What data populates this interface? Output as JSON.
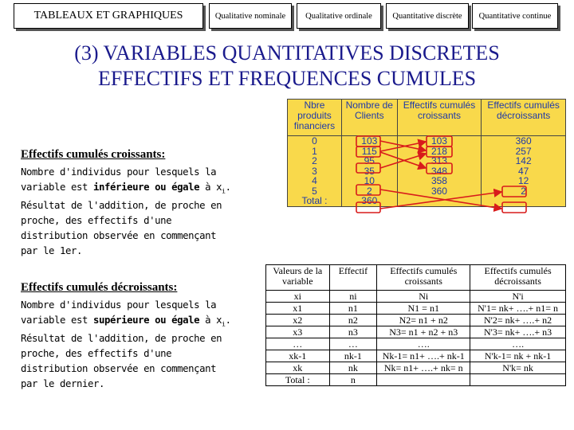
{
  "nav": {
    "tabs": [
      "TABLEAUX ET GRAPHIQUES",
      "Qualitative nominale",
      "Qualitative ordinale",
      "Quantitative discrète",
      "Quantitative continue"
    ]
  },
  "title": {
    "line1": "(3) VARIABLES QUANTITATIVES DISCRETES",
    "line2": "EFFECTIFS ET FREQUENCES CUMULES"
  },
  "section_croissants": {
    "heading": "Effectifs cumulés croissants:",
    "text_before": "Nombre d'individus pour lesquels la variable est ",
    "emphasis": "inférieure ou égale",
    "text_after": " à x",
    "subscript": "i",
    "text_end": ". Résultat de l'addition, de proche en proche, des effectifs d'une distribution observée en commençant par le 1er."
  },
  "section_decroissants": {
    "heading": "Effectifs cumulés décroissants:",
    "text_before": "Nombre d'individus pour lesquels la variable est ",
    "emphasis": "supérieure ou égale",
    "text_after": " à x",
    "subscript": "i",
    "text_end": ". Résultat de l'addition, de proche en proche, des effectifs d'une distribution observée en commençant par le dernier."
  },
  "table1": {
    "headers": [
      "Nbre produits financiers",
      "Nombre de Clients",
      "Effectifs cumulés croissants",
      "Effectifs cumulés décroissants"
    ],
    "rows": [
      [
        "0",
        "103",
        "103",
        "360"
      ],
      [
        "1",
        "115",
        "218",
        "257"
      ],
      [
        "2",
        "95",
        "313",
        "142"
      ],
      [
        "3",
        "35",
        "348",
        "47"
      ],
      [
        "4",
        "10",
        "358",
        "12"
      ],
      [
        "5",
        "2",
        "360",
        "2"
      ]
    ],
    "total_label": "Total :",
    "total_value": "360",
    "arrow_color": "#d81b1b"
  },
  "table2": {
    "headers": [
      "Valeurs de la variable",
      "Effectif",
      "Effectifs cumulés croissants",
      "Effectifs cumulés décroissants"
    ],
    "symbols": [
      "xi",
      "ni",
      "Ni",
      "N'i"
    ],
    "rows": [
      [
        "x1",
        "n1",
        "N1 = n1",
        "N'1= nk+ ….+ n1= n"
      ],
      [
        "x2",
        "n2",
        "N2= n1 + n2",
        "N'2= nk+ ….+ n2"
      ],
      [
        "x3",
        "n3",
        "N3= n1 + n2 + n3",
        "N'3= nk+ ….+ n3"
      ],
      [
        "…",
        "…",
        "….",
        "…."
      ],
      [
        "xk-1",
        "nk-1",
        "Nk-1= n1+ ….+ nk-1",
        "N'k-1= nk + nk-1"
      ],
      [
        "xk",
        "nk",
        "Nk= n1+ ….+ nk= n",
        "N'k= nk"
      ]
    ],
    "total_label": "Total :",
    "total_value": "n"
  }
}
